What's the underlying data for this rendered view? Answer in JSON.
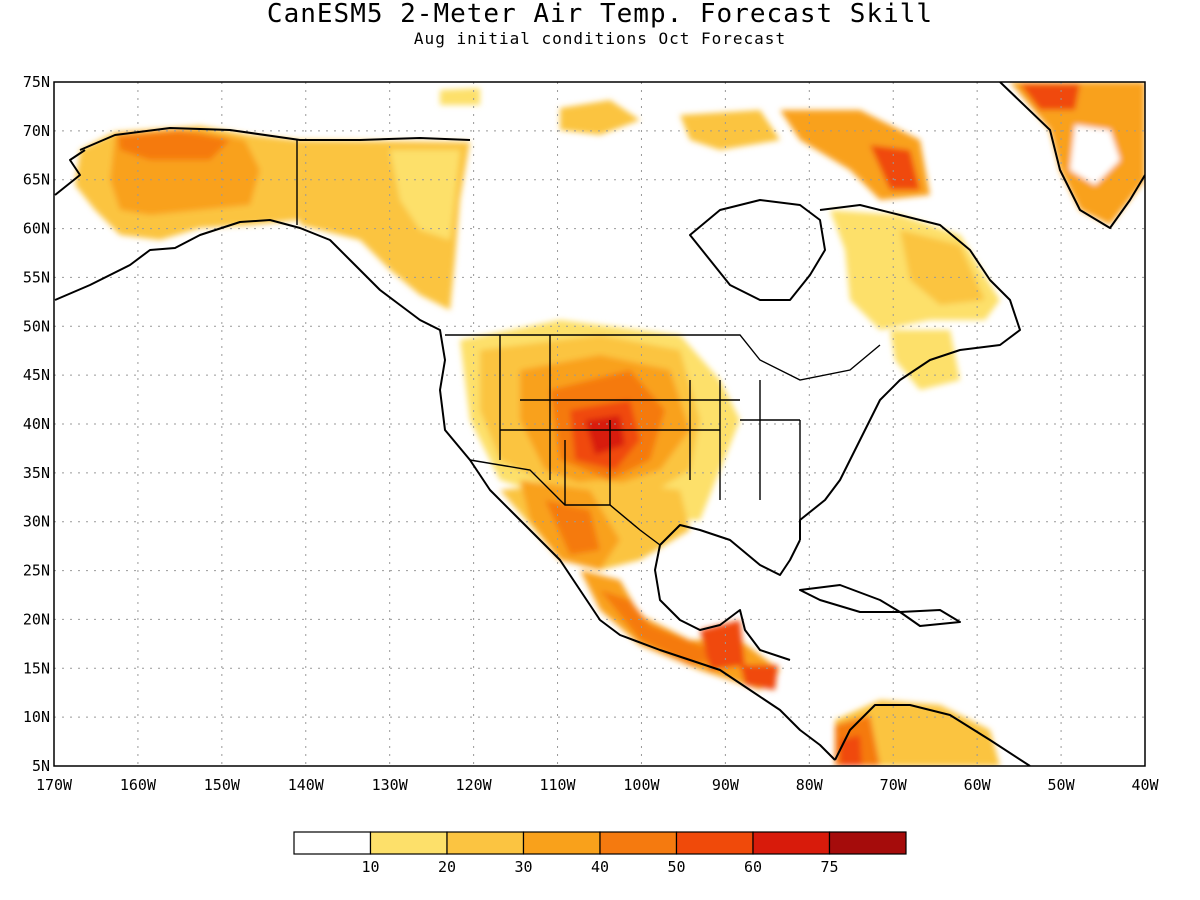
{
  "title": "CanESM5 2-Meter Air Temp. Forecast Skill",
  "subtitle": "Aug initial conditions  Oct Forecast",
  "map": {
    "lat_labels": [
      "75N",
      "70N",
      "65N",
      "60N",
      "55N",
      "50N",
      "45N",
      "40N",
      "35N",
      "30N",
      "25N",
      "20N",
      "15N",
      "10N",
      "5N"
    ],
    "lon_labels": [
      "170W",
      "160W",
      "150W",
      "140W",
      "130W",
      "120W",
      "110W",
      "100W",
      "90W",
      "80W",
      "70W",
      "60W",
      "50W",
      "40W"
    ],
    "lat_range": [
      5,
      75
    ],
    "lon_range": [
      -170,
      -40
    ],
    "grid": true
  },
  "colorbar": {
    "labels": [
      "10",
      "20",
      "30",
      "40",
      "50",
      "60",
      "75"
    ],
    "colors": [
      "#ffffff",
      "#fde06a",
      "#fbc441",
      "#f9a11b",
      "#f57a0f",
      "#f04a0a",
      "#d81b0b",
      "#a50c0b"
    ]
  },
  "skill_regions": [
    {
      "region": "Alaska",
      "level": 30
    },
    {
      "region": "Yukon / NW Canada",
      "level": 20
    },
    {
      "region": "Canadian Arctic Archipelago",
      "level": 20
    },
    {
      "region": "Greenland",
      "level": 40
    },
    {
      "region": "Labrador / Quebec",
      "level": 20
    },
    {
      "region": "US Southwest / Four Corners",
      "level": 60
    },
    {
      "region": "Northern Great Plains",
      "level": 40
    },
    {
      "region": "Texas / Northern Mexico",
      "level": 40
    },
    {
      "region": "Southern Mexico / Central America",
      "level": 50
    },
    {
      "region": "Northern South America",
      "level": 40
    }
  ]
}
